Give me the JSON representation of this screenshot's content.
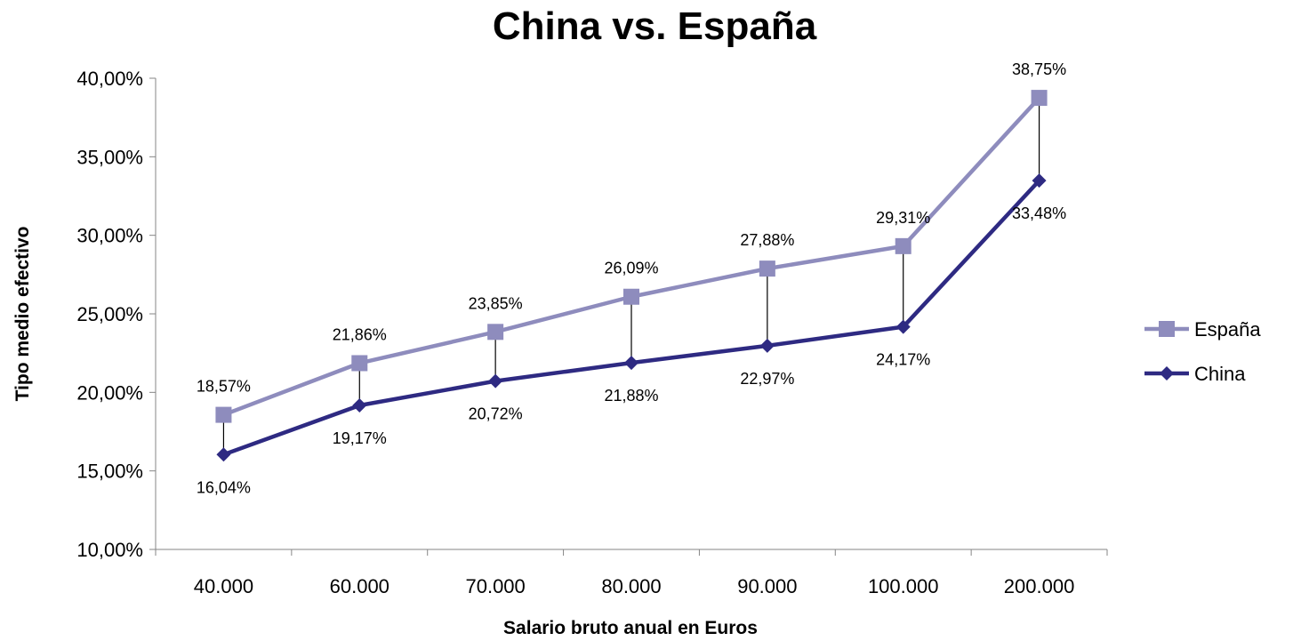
{
  "chart_data": {
    "type": "line",
    "title": "China vs. España",
    "xlabel": "Salario bruto anual en Euros",
    "ylabel": "Tipo medio efectivo",
    "categories": [
      "40.000",
      "60.000",
      "70.000",
      "80.000",
      "90.000",
      "100.000",
      "200.000"
    ],
    "ylim": [
      0.1,
      0.4
    ],
    "yticks": [
      "10,00%",
      "15,00%",
      "20,00%",
      "25,00%",
      "30,00%",
      "35,00%",
      "40,00%"
    ],
    "grid": false,
    "legend_position": "right",
    "drop_lines": true,
    "series": [
      {
        "name": "España",
        "color": "#8E8CBD",
        "marker": "square",
        "values": [
          0.1857,
          0.2186,
          0.2385,
          0.2609,
          0.2788,
          0.2931,
          0.3875
        ],
        "labels": [
          "18,57%",
          "21,86%",
          "23,85%",
          "26,09%",
          "27,88%",
          "29,31%",
          "38,75%"
        ]
      },
      {
        "name": "China",
        "color": "#2E2A82",
        "marker": "diamond",
        "values": [
          0.1604,
          0.1917,
          0.2072,
          0.2188,
          0.2297,
          0.2417,
          0.3348
        ],
        "labels": [
          "16,04%",
          "19,17%",
          "20,72%",
          "21,88%",
          "22,97%",
          "24,17%",
          "33,48%"
        ]
      }
    ]
  }
}
